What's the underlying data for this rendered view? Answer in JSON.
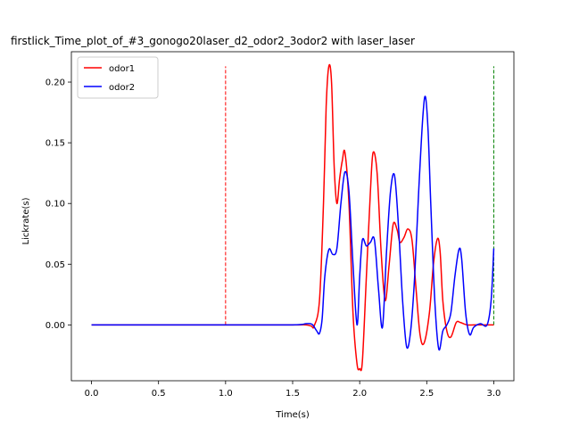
{
  "chart_data": {
    "type": "line",
    "title": "firstlick_Time_plot_of_#3_gonogo20laser_d2_odor2_3odor2 with laser_laser",
    "xlabel": "Time(s)",
    "ylabel": "Lickrate(s)",
    "xlim": [
      -0.15,
      3.15
    ],
    "ylim": [
      -0.046,
      0.225
    ],
    "x_ticks": [
      0.0,
      0.5,
      1.0,
      1.5,
      2.0,
      2.5,
      3.0
    ],
    "x_tick_labels": [
      "0.0",
      "0.5",
      "1.0",
      "1.5",
      "2.0",
      "2.5",
      "3.0"
    ],
    "y_ticks": [
      0.0,
      0.05,
      0.1,
      0.15,
      0.2
    ],
    "y_tick_labels": [
      "0.00",
      "0.05",
      "0.10",
      "0.15",
      "0.20"
    ],
    "grid": false,
    "legend_position": "top-left",
    "series": [
      {
        "name": "odor1",
        "color": "#ff0000",
        "x": [
          0.0,
          1.0,
          1.5,
          1.6,
          1.64,
          1.66,
          1.7,
          1.73,
          1.75,
          1.77,
          1.79,
          1.81,
          1.83,
          1.85,
          1.87,
          1.89,
          1.92,
          1.95,
          1.98,
          2.0,
          2.02,
          2.05,
          2.08,
          2.1,
          2.13,
          2.16,
          2.19,
          2.22,
          2.25,
          2.28,
          2.3,
          2.33,
          2.36,
          2.39,
          2.42,
          2.45,
          2.48,
          2.52,
          2.55,
          2.58,
          2.6,
          2.62,
          2.65,
          2.68,
          2.72,
          2.75,
          2.8,
          2.85,
          2.9,
          3.0
        ],
        "y": [
          0.0,
          0.0,
          0.0,
          0.0,
          -0.001,
          -0.001,
          0.02,
          0.1,
          0.18,
          0.213,
          0.2,
          0.13,
          0.1,
          0.12,
          0.135,
          0.142,
          0.1,
          0.01,
          -0.032,
          -0.036,
          -0.03,
          0.04,
          0.11,
          0.142,
          0.125,
          0.06,
          0.02,
          0.05,
          0.083,
          0.078,
          0.068,
          0.072,
          0.079,
          0.07,
          0.03,
          -0.008,
          -0.015,
          0.01,
          0.05,
          0.071,
          0.06,
          0.02,
          -0.005,
          -0.01,
          0.002,
          0.002,
          0.0,
          0.0,
          0.0,
          0.0
        ]
      },
      {
        "name": "odor2",
        "color": "#0000ff",
        "x": [
          0.0,
          1.0,
          1.5,
          1.6,
          1.63,
          1.65,
          1.68,
          1.7,
          1.72,
          1.74,
          1.77,
          1.8,
          1.83,
          1.86,
          1.89,
          1.92,
          1.95,
          1.98,
          2.0,
          2.02,
          2.05,
          2.08,
          2.11,
          2.14,
          2.17,
          2.2,
          2.23,
          2.26,
          2.29,
          2.32,
          2.35,
          2.38,
          2.41,
          2.44,
          2.47,
          2.49,
          2.51,
          2.53,
          2.56,
          2.59,
          2.62,
          2.65,
          2.68,
          2.71,
          2.74,
          2.76,
          2.79,
          2.82,
          2.85,
          2.9,
          2.95,
          2.98,
          3.0
        ],
        "y": [
          0.0,
          0.0,
          0.0,
          0.001,
          0.001,
          0.0,
          -0.005,
          -0.007,
          0.005,
          0.04,
          0.062,
          0.058,
          0.063,
          0.1,
          0.126,
          0.11,
          0.05,
          0.0,
          0.04,
          0.07,
          0.065,
          0.068,
          0.07,
          0.03,
          -0.002,
          0.06,
          0.11,
          0.123,
          0.08,
          0.02,
          -0.018,
          -0.005,
          0.04,
          0.11,
          0.17,
          0.188,
          0.16,
          0.1,
          0.02,
          -0.02,
          -0.005,
          0.0,
          0.01,
          0.04,
          0.062,
          0.055,
          0.01,
          -0.008,
          -0.002,
          0.001,
          0.0,
          0.02,
          0.063
        ]
      }
    ],
    "markers": [
      {
        "x": 1.0,
        "y_top": 0.213,
        "color": "#ff0000",
        "style": "dashed"
      },
      {
        "x": 3.0,
        "y_top": 0.213,
        "color": "#008000",
        "style": "dashed"
      }
    ]
  }
}
